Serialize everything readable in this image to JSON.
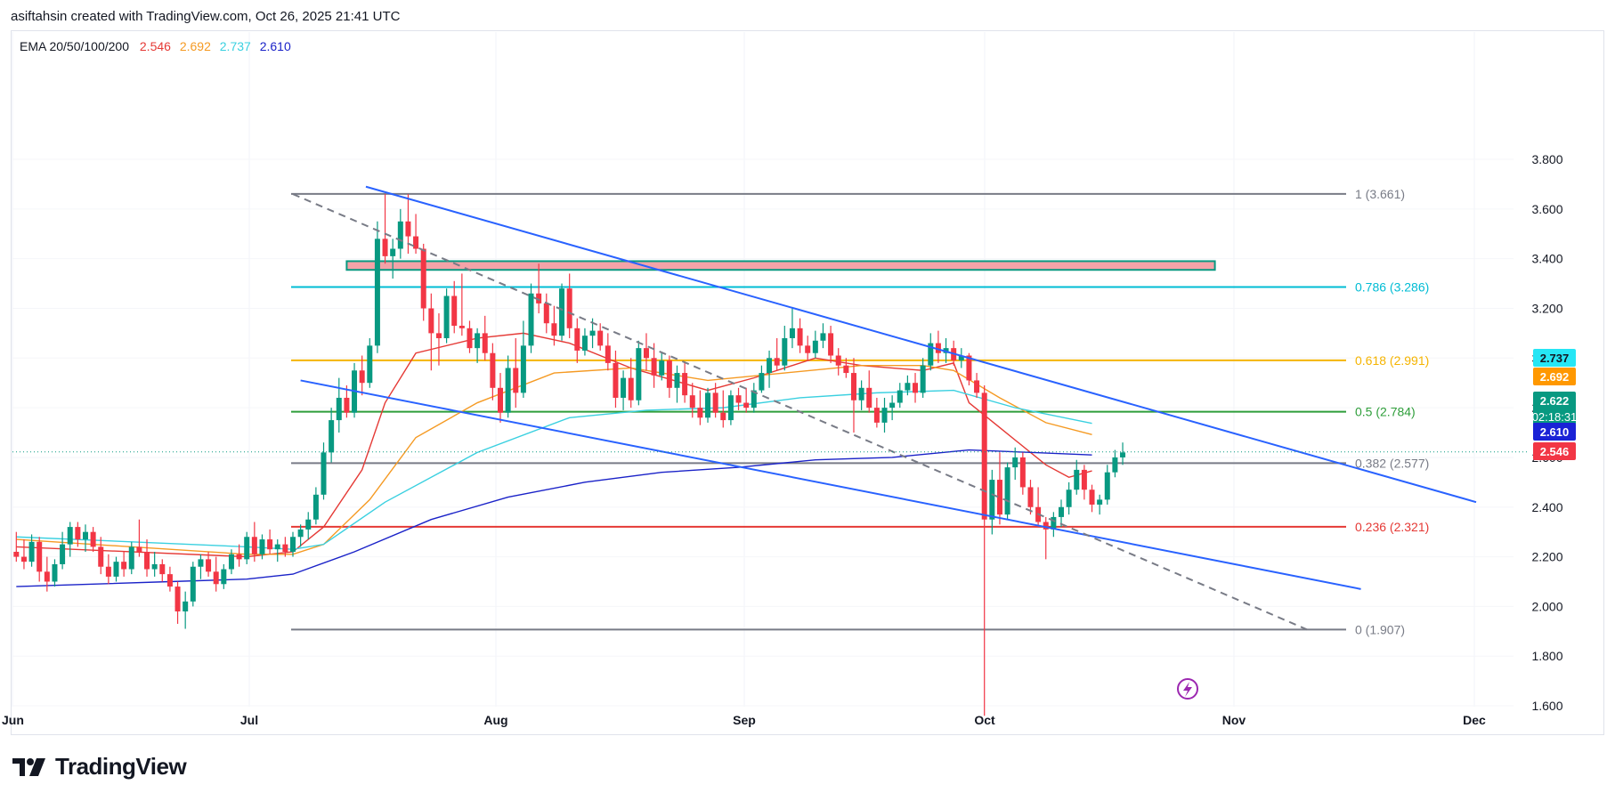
{
  "header": {
    "attribution": "asiftahsin created with TradingView.com, Oct 26, 2025 21:41 UTC"
  },
  "legend": {
    "name": "EMA 20/50/100/200",
    "values": [
      "2.546",
      "2.692",
      "2.737",
      "2.610"
    ]
  },
  "brand": {
    "name": "TradingView"
  },
  "colors": {
    "ema20": "#e53935",
    "ema50": "#f59a23",
    "ema100": "#3ad0e0",
    "ema200": "#1a22c8",
    "up": "#089981",
    "down": "#f23645",
    "trendline": "#2962ff",
    "zone": "#f4a3a8"
  },
  "chart_data": {
    "type": "candlestick",
    "x_axis": {
      "labels": [
        "Jun",
        "Jul",
        "Aug",
        "Sep",
        "Oct",
        "Nov",
        "Dec"
      ]
    },
    "y_axis": {
      "ticks": [
        "1.600",
        "1.800",
        "2.000",
        "2.200",
        "2.400",
        "2.600",
        "2.800",
        "3.000",
        "3.200",
        "3.400",
        "3.600",
        "3.800"
      ],
      "range": [
        1.55,
        3.85
      ]
    },
    "x_range_days": [
      -0.5,
      201
    ],
    "fib_levels": [
      {
        "label": "1 (3.661)",
        "value": 3.661,
        "color": "#787b86"
      },
      {
        "label": "0.786 (3.286)",
        "value": 3.286,
        "color": "#00bcd4"
      },
      {
        "label": "0.618 (2.991)",
        "value": 2.991,
        "color": "#f5b400"
      },
      {
        "label": "0.5 (2.784)",
        "value": 2.784,
        "color": "#2e9e3a"
      },
      {
        "label": "0.382 (2.577)",
        "value": 2.577,
        "color": "#787b86"
      },
      {
        "label": "0.236 (2.321)",
        "value": 2.321,
        "color": "#e53935"
      },
      {
        "label": "0 (1.907)",
        "value": 1.907,
        "color": "#787b86"
      }
    ],
    "fib_range_days": [
      36,
      168
    ],
    "price_tags": [
      {
        "label": "2.737",
        "value": 2.737,
        "color": "#26e6f5",
        "text_color": "#131722"
      },
      {
        "label": "2.692",
        "value": 2.692,
        "color": "#ff9800",
        "text_color": "#ffffff"
      },
      {
        "label": "2.622",
        "countdown": "02:18:31",
        "value": 2.622,
        "color": "#089981",
        "text_color": "#ffffff"
      },
      {
        "label": "2.610",
        "value": 2.61,
        "color": "#1a22d6",
        "text_color": "#ffffff"
      },
      {
        "label": "2.546",
        "value": 2.546,
        "color": "#f23645",
        "text_color": "#ffffff"
      }
    ],
    "last_price": 2.622,
    "resistance_zone": {
      "day_start": 43,
      "day_end": 156,
      "low": 3.355,
      "high": 3.39
    },
    "trendlines": [
      {
        "x1": 45.5,
        "y1": 3.69,
        "x2": 190,
        "y2": 2.42,
        "style": "solid"
      },
      {
        "x1": 37,
        "y1": 2.91,
        "x2": 175,
        "y2": 2.07,
        "style": "solid"
      },
      {
        "x1": 36,
        "y1": 3.66,
        "x2": 168,
        "y2": 1.907,
        "style": "dashed"
      }
    ],
    "candles_ohlc_by_day": [
      [
        2.22,
        2.3,
        2.18,
        2.2
      ],
      [
        2.2,
        2.27,
        2.15,
        2.18
      ],
      [
        2.18,
        2.29,
        2.16,
        2.26
      ],
      [
        2.26,
        2.28,
        2.1,
        2.14
      ],
      [
        2.14,
        2.2,
        2.06,
        2.1
      ],
      [
        2.1,
        2.19,
        2.08,
        2.17
      ],
      [
        2.17,
        2.3,
        2.15,
        2.25
      ],
      [
        2.25,
        2.34,
        2.2,
        2.32
      ],
      [
        2.32,
        2.34,
        2.24,
        2.27
      ],
      [
        2.27,
        2.33,
        2.22,
        2.3
      ],
      [
        2.3,
        2.32,
        2.22,
        2.24
      ],
      [
        2.24,
        2.28,
        2.13,
        2.16
      ],
      [
        2.16,
        2.21,
        2.09,
        2.12
      ],
      [
        2.12,
        2.2,
        2.1,
        2.18
      ],
      [
        2.18,
        2.22,
        2.12,
        2.15
      ],
      [
        2.15,
        2.26,
        2.13,
        2.24
      ],
      [
        2.24,
        2.35,
        2.2,
        2.22
      ],
      [
        2.22,
        2.27,
        2.12,
        2.15
      ],
      [
        2.15,
        2.22,
        2.12,
        2.17
      ],
      [
        2.17,
        2.19,
        2.1,
        2.13
      ],
      [
        2.13,
        2.16,
        2.06,
        2.08
      ],
      [
        2.08,
        2.1,
        1.93,
        1.98
      ],
      [
        1.98,
        2.06,
        1.91,
        2.02
      ],
      [
        2.02,
        2.18,
        2.0,
        2.16
      ],
      [
        2.16,
        2.21,
        2.11,
        2.19
      ],
      [
        2.19,
        2.22,
        2.12,
        2.14
      ],
      [
        2.14,
        2.2,
        2.06,
        2.09
      ],
      [
        2.09,
        2.17,
        2.07,
        2.15
      ],
      [
        2.15,
        2.23,
        2.13,
        2.21
      ],
      [
        2.21,
        2.25,
        2.16,
        2.19
      ],
      [
        2.19,
        2.3,
        2.17,
        2.28
      ],
      [
        2.28,
        2.34,
        2.18,
        2.21
      ],
      [
        2.21,
        2.29,
        2.19,
        2.27
      ],
      [
        2.27,
        2.31,
        2.21,
        2.23
      ],
      [
        2.23,
        2.27,
        2.18,
        2.25
      ],
      [
        2.25,
        2.28,
        2.2,
        2.22
      ],
      [
        2.22,
        2.3,
        2.2,
        2.28
      ],
      [
        2.28,
        2.33,
        2.24,
        2.31
      ],
      [
        2.31,
        2.38,
        2.27,
        2.35
      ],
      [
        2.35,
        2.48,
        2.33,
        2.45
      ],
      [
        2.45,
        2.66,
        2.43,
        2.62
      ],
      [
        2.62,
        2.8,
        2.58,
        2.75
      ],
      [
        2.75,
        2.92,
        2.7,
        2.84
      ],
      [
        2.84,
        2.89,
        2.76,
        2.78
      ],
      [
        2.78,
        2.98,
        2.76,
        2.95
      ],
      [
        2.95,
        3.01,
        2.85,
        2.9
      ],
      [
        2.9,
        3.08,
        2.88,
        3.05
      ],
      [
        3.05,
        3.55,
        3.02,
        3.48
      ],
      [
        3.48,
        3.66,
        3.38,
        3.41
      ],
      [
        3.41,
        3.48,
        3.32,
        3.44
      ],
      [
        3.44,
        3.6,
        3.4,
        3.55
      ],
      [
        3.55,
        3.66,
        3.42,
        3.49
      ],
      [
        3.49,
        3.58,
        3.42,
        3.44
      ],
      [
        3.44,
        3.46,
        3.15,
        3.2
      ],
      [
        3.2,
        3.26,
        2.95,
        3.1
      ],
      [
        3.1,
        3.18,
        2.97,
        3.08
      ],
      [
        3.08,
        3.28,
        3.06,
        3.25
      ],
      [
        3.25,
        3.31,
        3.1,
        3.13
      ],
      [
        3.13,
        3.34,
        3.09,
        3.12
      ],
      [
        3.12,
        3.15,
        3.02,
        3.04
      ],
      [
        3.04,
        3.12,
        2.98,
        3.1
      ],
      [
        3.1,
        3.17,
        2.99,
        3.02
      ],
      [
        3.02,
        3.06,
        2.83,
        2.88
      ],
      [
        2.88,
        2.94,
        2.74,
        2.78
      ],
      [
        2.78,
        3.01,
        2.76,
        2.96
      ],
      [
        2.96,
        3.08,
        2.8,
        2.86
      ],
      [
        2.86,
        3.15,
        2.84,
        3.05
      ],
      [
        3.05,
        3.3,
        3.02,
        3.26
      ],
      [
        3.26,
        3.38,
        3.18,
        3.22
      ],
      [
        3.22,
        3.26,
        3.1,
        3.14
      ],
      [
        3.14,
        3.21,
        3.05,
        3.09
      ],
      [
        3.09,
        3.3,
        3.07,
        3.28
      ],
      [
        3.28,
        3.34,
        3.08,
        3.12
      ],
      [
        3.12,
        3.16,
        2.98,
        3.03
      ],
      [
        3.03,
        3.12,
        3.01,
        3.09
      ],
      [
        3.09,
        3.16,
        3.04,
        3.11
      ],
      [
        3.11,
        3.14,
        3.03,
        3.05
      ],
      [
        3.05,
        3.1,
        2.95,
        2.98
      ],
      [
        2.98,
        3.03,
        2.8,
        2.84
      ],
      [
        2.84,
        2.95,
        2.79,
        2.92
      ],
      [
        2.92,
        3.0,
        2.8,
        2.83
      ],
      [
        2.83,
        3.07,
        2.81,
        3.04
      ],
      [
        3.04,
        3.1,
        2.95,
        3.0
      ],
      [
        3.0,
        3.06,
        2.88,
        2.93
      ],
      [
        2.93,
        3.02,
        2.91,
        2.99
      ],
      [
        2.99,
        3.01,
        2.84,
        2.88
      ],
      [
        2.88,
        2.97,
        2.82,
        2.94
      ],
      [
        2.94,
        2.98,
        2.82,
        2.85
      ],
      [
        2.85,
        2.9,
        2.76,
        2.8
      ],
      [
        2.8,
        2.87,
        2.73,
        2.76
      ],
      [
        2.76,
        2.88,
        2.74,
        2.86
      ],
      [
        2.86,
        2.9,
        2.76,
        2.78
      ],
      [
        2.78,
        2.87,
        2.72,
        2.75
      ],
      [
        2.75,
        2.87,
        2.73,
        2.85
      ],
      [
        2.85,
        2.88,
        2.79,
        2.82
      ],
      [
        2.82,
        2.88,
        2.78,
        2.8
      ],
      [
        2.8,
        2.9,
        2.78,
        2.87
      ],
      [
        2.87,
        2.97,
        2.86,
        2.94
      ],
      [
        2.94,
        3.03,
        2.88,
        3.0
      ],
      [
        3.0,
        3.08,
        2.95,
        2.97
      ],
      [
        2.97,
        3.13,
        2.95,
        3.08
      ],
      [
        3.08,
        3.2,
        3.04,
        3.12
      ],
      [
        3.12,
        3.16,
        3.02,
        3.05
      ],
      [
        3.05,
        3.09,
        2.99,
        3.02
      ],
      [
        3.02,
        3.11,
        3.0,
        3.07
      ],
      [
        3.07,
        3.14,
        3.04,
        3.1
      ],
      [
        3.1,
        3.13,
        2.98,
        3.01
      ],
      [
        3.01,
        3.04,
        2.93,
        2.97
      ],
      [
        2.97,
        3.0,
        2.92,
        2.94
      ],
      [
        2.94,
        3.0,
        2.7,
        2.83
      ],
      [
        2.83,
        2.91,
        2.79,
        2.88
      ],
      [
        2.88,
        2.95,
        2.78,
        2.8
      ],
      [
        2.8,
        2.84,
        2.72,
        2.74
      ],
      [
        2.74,
        2.84,
        2.7,
        2.8
      ],
      [
        2.8,
        2.85,
        2.75,
        2.82
      ],
      [
        2.82,
        2.9,
        2.8,
        2.87
      ],
      [
        2.87,
        2.93,
        2.85,
        2.9
      ],
      [
        2.9,
        2.94,
        2.82,
        2.86
      ],
      [
        2.86,
        3.0,
        2.84,
        2.97
      ],
      [
        2.97,
        3.1,
        2.95,
        3.06
      ],
      [
        3.06,
        3.11,
        2.98,
        3.02
      ],
      [
        3.02,
        3.08,
        2.98,
        3.04
      ],
      [
        3.04,
        3.07,
        2.97,
        2.99
      ],
      [
        2.99,
        3.04,
        2.96,
        3.01
      ],
      [
        3.01,
        3.02,
        2.89,
        2.91
      ],
      [
        2.91,
        2.94,
        2.84,
        2.86
      ],
      [
        2.86,
        2.89,
        1.56,
        2.35
      ],
      [
        2.35,
        2.55,
        2.29,
        2.51
      ],
      [
        2.51,
        2.62,
        2.33,
        2.37
      ],
      [
        2.37,
        2.58,
        2.35,
        2.56
      ],
      [
        2.56,
        2.64,
        2.51,
        2.6
      ],
      [
        2.6,
        2.62,
        2.45,
        2.48
      ],
      [
        2.48,
        2.51,
        2.37,
        2.4
      ],
      [
        2.4,
        2.48,
        2.32,
        2.34
      ],
      [
        2.34,
        2.36,
        2.19,
        2.31
      ],
      [
        2.31,
        2.38,
        2.28,
        2.36
      ],
      [
        2.36,
        2.43,
        2.32,
        2.4
      ],
      [
        2.4,
        2.5,
        2.37,
        2.47
      ],
      [
        2.47,
        2.59,
        2.45,
        2.55
      ],
      [
        2.55,
        2.57,
        2.43,
        2.47
      ],
      [
        2.47,
        2.49,
        2.38,
        2.41
      ],
      [
        2.41,
        2.45,
        2.37,
        2.43
      ],
      [
        2.43,
        2.57,
        2.41,
        2.54
      ],
      [
        2.54,
        2.63,
        2.52,
        2.6
      ],
      [
        2.6,
        2.66,
        2.57,
        2.62
      ]
    ],
    "ema_points_by_day": {
      "ema20": [
        [
          0,
          2.24
        ],
        [
          30,
          2.2
        ],
        [
          36,
          2.22
        ],
        [
          40,
          2.32
        ],
        [
          45,
          2.55
        ],
        [
          48,
          2.82
        ],
        [
          52,
          3.02
        ],
        [
          60,
          3.08
        ],
        [
          66,
          3.1
        ],
        [
          72,
          3.06
        ],
        [
          80,
          2.96
        ],
        [
          90,
          2.87
        ],
        [
          96,
          2.92
        ],
        [
          104,
          3.0
        ],
        [
          110,
          2.97
        ],
        [
          118,
          2.95
        ],
        [
          122,
          2.98
        ],
        [
          124,
          2.82
        ],
        [
          128,
          2.72
        ],
        [
          134,
          2.57
        ],
        [
          137,
          2.52
        ],
        [
          140,
          2.546
        ]
      ],
      "ema50": [
        [
          0,
          2.27
        ],
        [
          30,
          2.21
        ],
        [
          36,
          2.21
        ],
        [
          40,
          2.25
        ],
        [
          46,
          2.43
        ],
        [
          52,
          2.68
        ],
        [
          60,
          2.82
        ],
        [
          70,
          2.94
        ],
        [
          80,
          2.96
        ],
        [
          90,
          2.91
        ],
        [
          100,
          2.94
        ],
        [
          110,
          2.97
        ],
        [
          118,
          2.97
        ],
        [
          122,
          2.95
        ],
        [
          128,
          2.84
        ],
        [
          134,
          2.74
        ],
        [
          140,
          2.692
        ]
      ],
      "ema100": [
        [
          0,
          2.28
        ],
        [
          30,
          2.24
        ],
        [
          36,
          2.23
        ],
        [
          40,
          2.25
        ],
        [
          48,
          2.42
        ],
        [
          60,
          2.62
        ],
        [
          72,
          2.76
        ],
        [
          82,
          2.79
        ],
        [
          92,
          2.8
        ],
        [
          102,
          2.84
        ],
        [
          112,
          2.86
        ],
        [
          122,
          2.87
        ],
        [
          130,
          2.8
        ],
        [
          140,
          2.737
        ]
      ],
      "ema200": [
        [
          0,
          2.08
        ],
        [
          20,
          2.1
        ],
        [
          30,
          2.11
        ],
        [
          36,
          2.13
        ],
        [
          44,
          2.22
        ],
        [
          54,
          2.35
        ],
        [
          64,
          2.44
        ],
        [
          74,
          2.5
        ],
        [
          84,
          2.54
        ],
        [
          94,
          2.56
        ],
        [
          104,
          2.59
        ],
        [
          114,
          2.6
        ],
        [
          124,
          2.63
        ],
        [
          132,
          2.62
        ],
        [
          140,
          2.61
        ]
      ]
    }
  }
}
